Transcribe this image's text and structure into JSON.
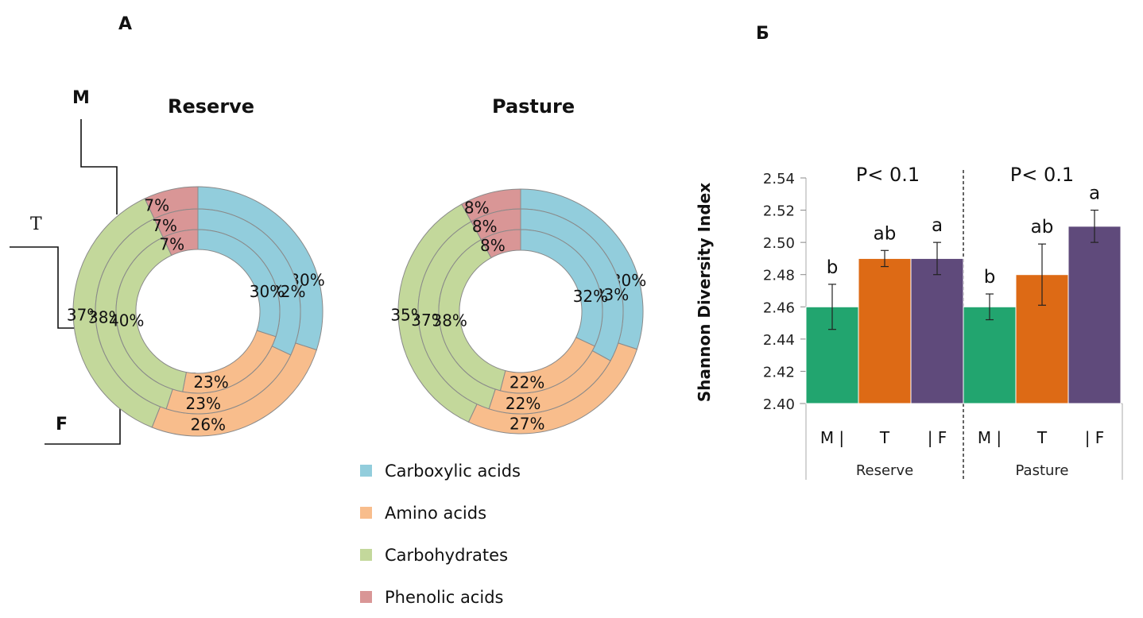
{
  "panels": {
    "a_label": "A",
    "b_label": "Б"
  },
  "donut_rings": {
    "outer": "M",
    "middle": "T",
    "inner": "F"
  },
  "colors": {
    "Carboxylic acids": "#92cddc",
    "Amino acids": "#f8bd8c",
    "Carbohydrates": "#c3d89b",
    "Phenolic acids": "#d99696",
    "M": "#22a56f",
    "T": "#dd6a15",
    "F": "#5f4a7b"
  },
  "chart_data": [
    {
      "type": "pie",
      "subtype": "multi-ring-donut",
      "title": "Reserve",
      "categories": [
        "Carboxylic acids",
        "Amino acids",
        "Carbohydrates",
        "Phenolic acids"
      ],
      "series": [
        {
          "name": "M",
          "ring": "outer",
          "values": [
            30,
            26,
            37,
            7
          ]
        },
        {
          "name": "T",
          "ring": "middle",
          "values": [
            32,
            23,
            38,
            7
          ]
        },
        {
          "name": "F",
          "ring": "inner",
          "values": [
            30,
            23,
            40,
            7
          ]
        }
      ],
      "unit": "%"
    },
    {
      "type": "pie",
      "subtype": "multi-ring-donut",
      "title": "Pasture",
      "categories": [
        "Carboxylic acids",
        "Amino acids",
        "Carbohydrates",
        "Phenolic acids"
      ],
      "series": [
        {
          "name": "M",
          "ring": "outer",
          "values": [
            30,
            27,
            35,
            8
          ]
        },
        {
          "name": "T",
          "ring": "middle",
          "values": [
            33,
            22,
            37,
            8
          ]
        },
        {
          "name": "F",
          "ring": "inner",
          "values": [
            32,
            22,
            38,
            8
          ]
        }
      ],
      "unit": "%"
    },
    {
      "type": "bar",
      "title": "",
      "ylabel": "Shannon Diversity Index",
      "xlabel": "",
      "ylim": [
        2.4,
        2.54
      ],
      "yticks": [
        "2.40",
        "2.42",
        "2.44",
        "2.46",
        "2.48",
        "2.50",
        "2.52",
        "2.54"
      ],
      "groups": [
        {
          "name": "Reserve",
          "annotation": "P< 0.1",
          "categories": [
            "M",
            "T",
            "F"
          ],
          "tick_text": [
            "M |",
            "T",
            "| F"
          ],
          "values": [
            2.46,
            2.49,
            2.49
          ],
          "errors": [
            0.014,
            0.005,
            0.01
          ],
          "letters": [
            "b",
            "ab",
            "a"
          ]
        },
        {
          "name": "Pasture",
          "annotation": "P< 0.1",
          "categories": [
            "M",
            "T",
            "F"
          ],
          "tick_text": [
            "M |",
            "T",
            "| F"
          ],
          "values": [
            2.46,
            2.48,
            2.51
          ],
          "errors": [
            0.008,
            0.019,
            0.01
          ],
          "letters": [
            "b",
            "ab",
            "a"
          ]
        }
      ],
      "grid": false,
      "legend": "none"
    }
  ],
  "legend": [
    {
      "label": "Carboxylic acids",
      "color": "#92cddc"
    },
    {
      "label": "Amino acids",
      "color": "#f8bd8c"
    },
    {
      "label": "Carbohydrates",
      "color": "#c3d89b"
    },
    {
      "label": "Phenolic acids",
      "color": "#d99696"
    }
  ]
}
